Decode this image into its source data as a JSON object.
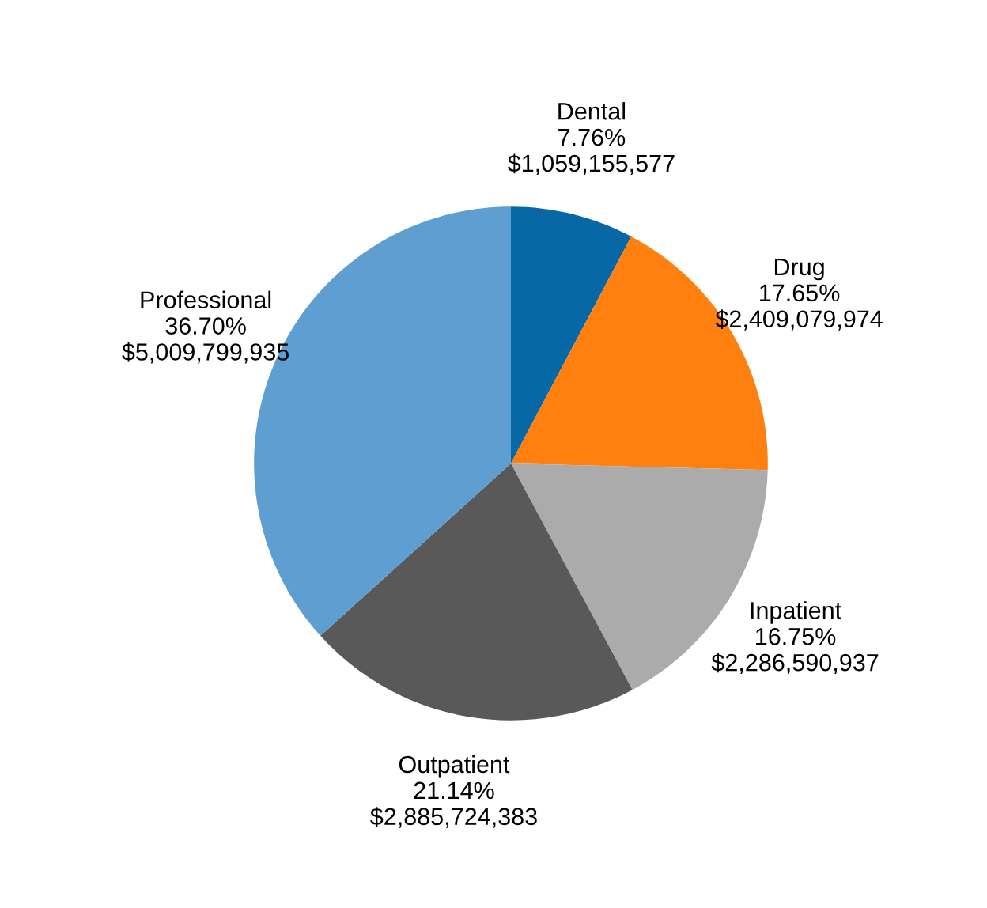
{
  "chart_data": {
    "type": "pie",
    "categories": [
      "Dental",
      "Drug",
      "Inpatient",
      "Outpatient",
      "Professional"
    ],
    "values": [
      1059155577,
      2409079974,
      2286590937,
      2885724383,
      5009799935
    ],
    "value_labels": [
      "7.76%\n$1,059,155,577",
      "17.65%\n$2,409,079,974",
      "16.75%\n$2,286,590,937",
      "21.14%\n$2,885,724,383",
      "36.70%\n$5,009,799,935"
    ],
    "colors": [
      "#0868a6",
      "#ff800e",
      "#ababab",
      "#595959",
      "#5f9ed1"
    ],
    "legend": false
  }
}
